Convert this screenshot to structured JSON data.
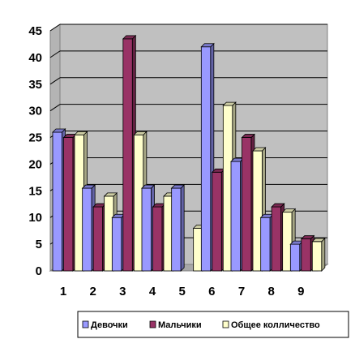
{
  "chart_data": {
    "type": "bar",
    "categories": [
      "1",
      "2",
      "3",
      "4",
      "5",
      "6",
      "7",
      "8",
      "9"
    ],
    "series": [
      {
        "name": "Девочки",
        "values": [
          26,
          15.5,
          10,
          15.5,
          15.5,
          42,
          20.5,
          10,
          5
        ],
        "color": "#9999FF"
      },
      {
        "name": "Мальчики",
        "values": [
          25,
          12,
          43.5,
          12,
          0,
          18.5,
          25,
          12,
          6
        ],
        "color": "#993366"
      },
      {
        "name": "Общее колличество",
        "values": [
          25.5,
          14,
          25.5,
          14,
          8,
          31,
          22.5,
          11,
          5.5
        ],
        "color": "#FFFFCC"
      }
    ],
    "ylim": [
      0,
      45
    ],
    "yticks": [
      "0",
      "5",
      "10",
      "15",
      "20",
      "25",
      "30",
      "35",
      "40",
      "45"
    ],
    "grid": true,
    "legend_position": "bottom"
  }
}
